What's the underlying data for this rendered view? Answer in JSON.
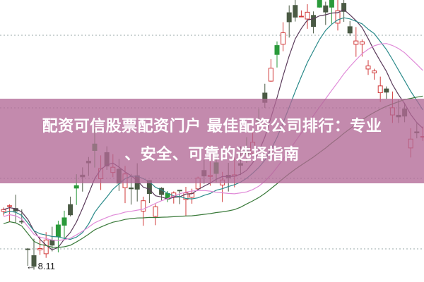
{
  "banner": {
    "title_line1": "配资可信股票配资门户 最佳配资公司排行：专业",
    "title_line2": "、安全、可靠的选择指南"
  },
  "chart": {
    "low_price_label": "8.11",
    "colors": {
      "up": "#d23a3a",
      "down": "#2a9a3a",
      "down_dark": "#4a5a44",
      "ma_short": "#5a3a5a",
      "ma_mid": "#2a8a8a",
      "ma_pink": "#e08ad8",
      "ma_long": "#3a7a3a",
      "banner": "#b26996"
    }
  }
}
